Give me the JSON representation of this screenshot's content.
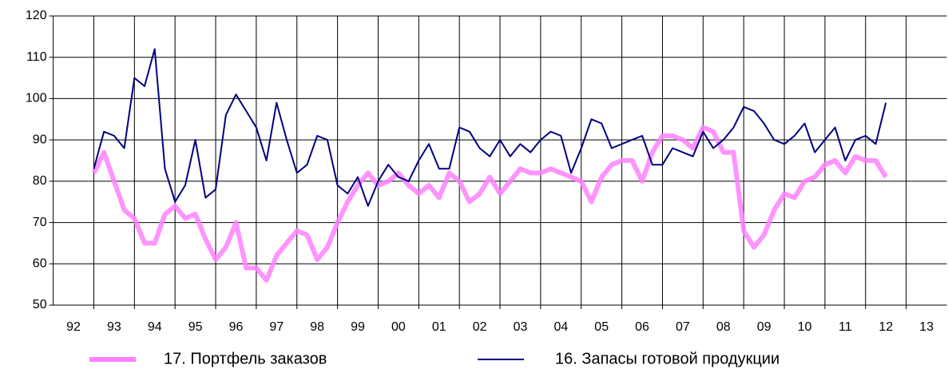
{
  "chart_data": {
    "type": "line",
    "x": [
      1993,
      1993.25,
      1993.5,
      1993.75,
      1994,
      1994.25,
      1994.5,
      1994.75,
      1995,
      1995.25,
      1995.5,
      1995.75,
      1996,
      1996.25,
      1996.5,
      1996.75,
      1997,
      1997.25,
      1997.5,
      1997.75,
      1998,
      1998.25,
      1998.5,
      1998.75,
      1999,
      1999.25,
      1999.5,
      1999.75,
      2000,
      2000.25,
      2000.5,
      2000.75,
      2001,
      2001.25,
      2001.5,
      2001.75,
      2002,
      2002.25,
      2002.5,
      2002.75,
      2003,
      2003.25,
      2003.5,
      2003.75,
      2004,
      2004.25,
      2004.5,
      2004.75,
      2005,
      2005.25,
      2005.5,
      2005.75,
      2006,
      2006.25,
      2006.5,
      2006.75,
      2007,
      2007.25,
      2007.5,
      2007.75,
      2008,
      2008.25,
      2008.5,
      2008.75,
      2009,
      2009.25,
      2009.5,
      2009.75,
      2010,
      2010.25,
      2010.5,
      2010.75,
      2011,
      2011.25,
      2011.5,
      2011.75,
      2012,
      2012.25,
      2012.5
    ],
    "series": [
      {
        "name": "17. Портфель заказов",
        "color": "#ff80ff",
        "values": [
          82,
          87,
          80,
          73,
          71,
          65,
          65,
          72,
          74,
          71,
          72,
          66,
          61,
          64,
          70,
          59,
          59,
          56,
          62,
          65,
          68,
          67,
          61,
          64,
          70,
          75,
          79,
          82,
          79,
          80,
          82,
          79,
          77,
          79,
          76,
          82,
          80,
          75,
          77,
          81,
          77,
          80,
          83,
          82,
          82,
          83,
          82,
          81,
          80,
          75,
          81,
          84,
          85,
          85,
          80,
          87,
          91,
          91,
          90,
          88,
          93,
          92,
          87,
          87,
          68,
          64,
          67,
          73,
          77,
          76,
          80,
          81,
          84,
          85,
          82,
          86,
          85,
          85,
          81
        ]
      },
      {
        "name": "16. Запасы готовой продукции",
        "color": "#000080",
        "values": [
          83,
          92,
          91,
          88,
          105,
          103,
          112,
          83,
          75,
          79,
          90,
          76,
          78,
          96,
          101,
          97,
          93,
          85,
          99,
          90,
          82,
          84,
          91,
          90,
          79,
          77,
          81,
          74,
          80,
          84,
          81,
          80,
          85,
          89,
          83,
          83,
          93,
          92,
          88,
          86,
          90,
          86,
          89,
          87,
          90,
          92,
          91,
          82,
          88,
          95,
          94,
          88,
          89,
          90,
          91,
          84,
          84,
          88,
          87,
          86,
          92,
          88,
          90,
          93,
          98,
          97,
          94,
          90,
          89,
          91,
          94,
          87,
          90,
          93,
          85,
          90,
          91,
          89,
          99
        ]
      }
    ],
    "xlim": [
      1992,
      2014
    ],
    "xticks": [
      {
        "value": 1992.5,
        "label": "92"
      },
      {
        "value": 1993.5,
        "label": "93"
      },
      {
        "value": 1994.5,
        "label": "94"
      },
      {
        "value": 1995.5,
        "label": "95"
      },
      {
        "value": 1996.5,
        "label": "96"
      },
      {
        "value": 1997.5,
        "label": "97"
      },
      {
        "value": 1998.5,
        "label": "98"
      },
      {
        "value": 1999.5,
        "label": "99"
      },
      {
        "value": 2000.5,
        "label": "00"
      },
      {
        "value": 2001.5,
        "label": "01"
      },
      {
        "value": 2002.5,
        "label": "02"
      },
      {
        "value": 2003.5,
        "label": "03"
      },
      {
        "value": 2004.5,
        "label": "04"
      },
      {
        "value": 2005.5,
        "label": "05"
      },
      {
        "value": 2006.5,
        "label": "06"
      },
      {
        "value": 2007.5,
        "label": "07"
      },
      {
        "value": 2008.5,
        "label": "08"
      },
      {
        "value": 2009.5,
        "label": "09"
      },
      {
        "value": 2010.5,
        "label": "10"
      },
      {
        "value": 2011.5,
        "label": "11"
      },
      {
        "value": 2012.5,
        "label": "12"
      },
      {
        "value": 2013.5,
        "label": "13"
      }
    ],
    "ylim": [
      50,
      120
    ],
    "yticks": [
      50,
      60,
      70,
      80,
      90,
      100,
      110,
      120
    ],
    "grid": true,
    "legend": "bottom"
  }
}
